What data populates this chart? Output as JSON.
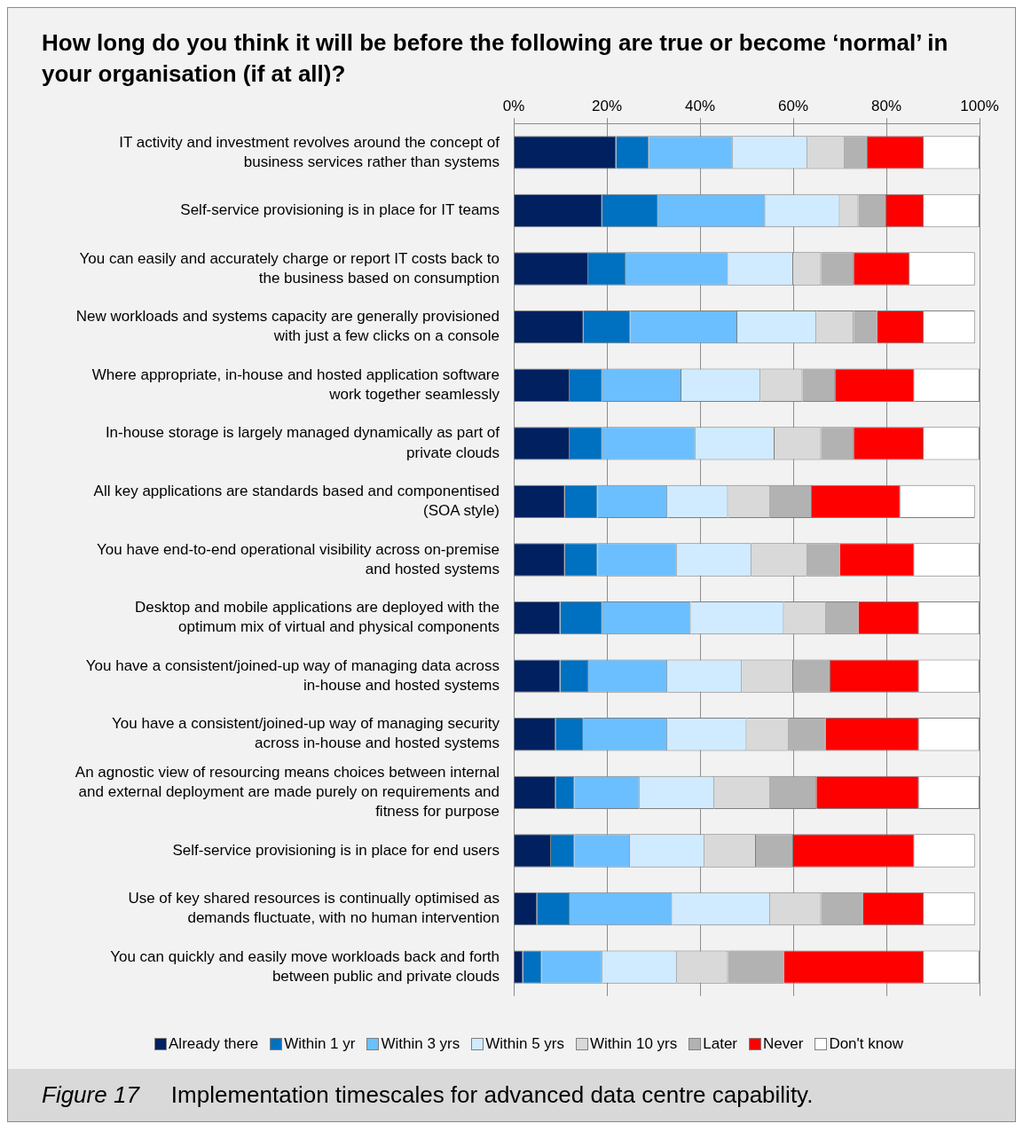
{
  "chart_data": {
    "type": "bar",
    "orientation": "horizontal",
    "stacked": true,
    "title": "How long do you think it will be before the following are true or become ‘normal’ in your organisation (if at all)?",
    "annotations": [
      "Figure 17",
      "Implementation timescales for advanced data centre capability."
    ],
    "categories": [
      "IT activity and investment revolves around the concept of business services rather than systems",
      "Self-service provisioning is in place for IT teams",
      "You can easily and accurately charge or report IT costs back to the business based on consumption",
      "New workloads and systems capacity are generally provisioned with just a few clicks on a console",
      "Where appropriate, in-house and hosted application software work together seamlessly",
      "In-house storage is largely managed dynamically as part of private clouds",
      "All key applications are standards based and componentised (SOA style)",
      "You have end-to-end operational visibility across on-premise and hosted systems",
      "Desktop and mobile applications are deployed with the optimum mix of virtual and physical components",
      "You have a consistent/joined-up way of managing data across in-house and hosted systems",
      "You have a consistent/joined-up way of managing security across in-house and hosted systems",
      "An agnostic view of resourcing means choices between internal and external deployment are made purely on requirements and fitness for purpose",
      "Self-service provisioning is in place for end users",
      "Use of key shared resources is continually optimised as demands fluctuate, with no human intervention",
      "You can quickly and easily move workloads back and forth between public and private clouds"
    ],
    "series": [
      {
        "name": "Already there",
        "color": "#002060",
        "values": [
          22,
          19,
          16,
          15,
          12,
          12,
          11,
          11,
          10,
          10,
          9,
          9,
          8,
          5,
          2
        ]
      },
      {
        "name": "Within 1 yr",
        "color": "#0070c0",
        "values": [
          7,
          12,
          8,
          10,
          7,
          7,
          7,
          7,
          9,
          6,
          6,
          4,
          5,
          7,
          4
        ]
      },
      {
        "name": "Within 3 yrs",
        "color": "#6bbfff",
        "values": [
          18,
          23,
          22,
          23,
          17,
          20,
          15,
          17,
          19,
          17,
          18,
          14,
          12,
          22,
          13
        ]
      },
      {
        "name": "Within 5 yrs",
        "color": "#d0ebff",
        "values": [
          16,
          16,
          14,
          17,
          17,
          17,
          13,
          16,
          20,
          16,
          17,
          16,
          16,
          21,
          16
        ]
      },
      {
        "name": "Within 10 yrs",
        "color": "#d9d9d9",
        "values": [
          8,
          4,
          6,
          8,
          9,
          10,
          9,
          12,
          9,
          11,
          9,
          12,
          11,
          11,
          11
        ]
      },
      {
        "name": "Later",
        "color": "#b2b2b2",
        "values": [
          5,
          6,
          7,
          5,
          7,
          7,
          9,
          7,
          7,
          8,
          8,
          10,
          8,
          9,
          12
        ]
      },
      {
        "name": "Never",
        "color": "#ff0000",
        "values": [
          12,
          8,
          12,
          10,
          17,
          15,
          19,
          16,
          13,
          19,
          20,
          22,
          26,
          13,
          30
        ]
      },
      {
        "name": "Don't know",
        "color": "#ffffff",
        "values": [
          12,
          12,
          14,
          11,
          14,
          12,
          16,
          14,
          13,
          13,
          13,
          13,
          13,
          11,
          12
        ]
      }
    ],
    "xlim": [
      0,
      100
    ],
    "xticks": [
      {
        "value": 0,
        "label": "0%"
      },
      {
        "value": 20,
        "label": "20%"
      },
      {
        "value": 40,
        "label": "40%"
      },
      {
        "value": 60,
        "label": "60%"
      },
      {
        "value": 80,
        "label": "80%"
      },
      {
        "value": 100,
        "label": "100%"
      }
    ],
    "grid": "x",
    "legend": "bottom"
  }
}
